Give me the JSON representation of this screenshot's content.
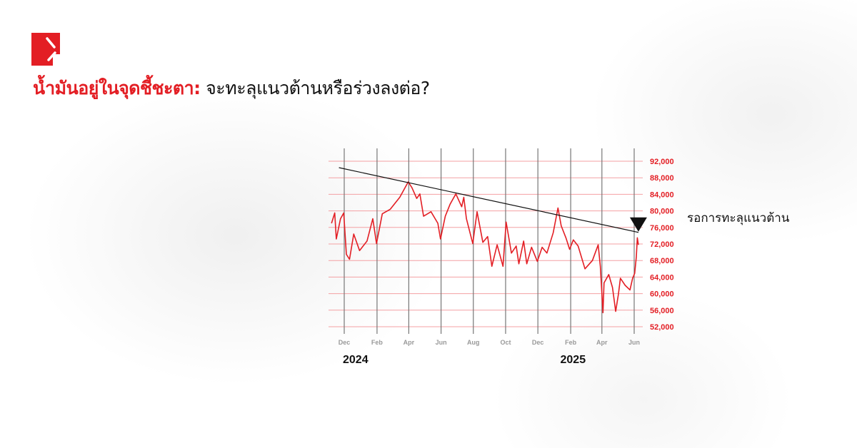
{
  "brand": {
    "logo": "red-corner-logo",
    "accent": "#e31e24"
  },
  "title": {
    "highlight": "น้ำมันอยู่ในจุดชี้ชะตา:",
    "rest": " จะทะลุแนวต้านหรือร่วงลงต่อ?"
  },
  "annotation": "รอการทะลุแนวต้าน",
  "chart_data": {
    "type": "line",
    "title": "",
    "xlabel": "",
    "ylabel": "",
    "ylim": [
      52000,
      92000
    ],
    "yticks": [
      "92,000",
      "88,000",
      "84,000",
      "80,000",
      "76,000",
      "72,000",
      "68,000",
      "64,000",
      "60,000",
      "56,000",
      "52,000"
    ],
    "ytick_values": [
      92000,
      88000,
      84000,
      80000,
      76000,
      72000,
      68000,
      64000,
      60000,
      56000,
      52000
    ],
    "xticks": [
      {
        "label": "Dec",
        "date": "2023-12-01"
      },
      {
        "label": "Feb",
        "date": "2024-02-01"
      },
      {
        "label": "Apr",
        "date": "2024-04-01"
      },
      {
        "label": "Jun",
        "date": "2024-06-01"
      },
      {
        "label": "Aug",
        "date": "2024-08-01"
      },
      {
        "label": "Oct",
        "date": "2024-10-01"
      },
      {
        "label": "Dec",
        "date": "2024-12-01"
      },
      {
        "label": "Feb",
        "date": "2025-02-01"
      },
      {
        "label": "Apr",
        "date": "2025-04-01"
      },
      {
        "label": "Jun",
        "date": "2025-06-01"
      }
    ],
    "year_labels": [
      {
        "label": "2024",
        "date": "2023-12-01"
      },
      {
        "label": "2025",
        "date": "2025-01-15"
      }
    ],
    "grid": true,
    "series_color": "#e31e24",
    "series": [
      {
        "x": [
          "2023-11-07",
          "2023-11-13",
          "2023-11-16",
          "2023-11-24",
          "2023-11-30",
          "2023-12-05",
          "2023-12-11",
          "2023-12-19",
          "2023-12-30",
          "2024-01-13",
          "2024-01-24",
          "2024-01-31",
          "2024-02-11",
          "2024-02-26",
          "2024-03-15",
          "2024-03-31",
          "2024-04-07",
          "2024-04-16",
          "2024-04-22",
          "2024-04-29",
          "2024-05-13",
          "2024-05-26",
          "2024-05-31",
          "2024-06-09",
          "2024-06-18",
          "2024-06-29",
          "2024-07-10",
          "2024-07-14",
          "2024-07-19",
          "2024-07-31",
          "2024-08-08",
          "2024-08-19",
          "2024-08-28",
          "2024-09-05",
          "2024-09-15",
          "2024-09-26",
          "2024-10-02",
          "2024-10-12",
          "2024-10-21",
          "2024-10-26",
          "2024-11-04",
          "2024-11-10",
          "2024-11-19",
          "2024-11-30",
          "2024-12-09",
          "2024-12-18",
          "2024-12-30",
          "2025-01-08",
          "2025-01-14",
          "2025-01-23",
          "2025-01-30",
          "2025-02-06",
          "2025-02-15",
          "2025-02-28",
          "2025-03-14",
          "2025-03-25",
          "2025-03-29",
          "2025-04-03",
          "2025-04-05",
          "2025-04-14",
          "2025-04-21",
          "2025-04-27",
          "2025-05-02",
          "2025-05-06",
          "2025-05-15",
          "2025-05-24",
          "2025-05-29",
          "2025-06-02",
          "2025-06-05",
          "2025-06-07",
          "2025-06-09"
        ],
        "y": [
          77000,
          79500,
          73200,
          78100,
          79500,
          69500,
          68300,
          74400,
          70400,
          72700,
          78100,
          72100,
          79300,
          80400,
          83300,
          87000,
          85600,
          83000,
          84100,
          78700,
          79800,
          77000,
          73200,
          78700,
          81600,
          84100,
          81000,
          83300,
          78100,
          72100,
          79800,
          72400,
          73800,
          66600,
          71800,
          66600,
          77300,
          69800,
          71500,
          67200,
          72700,
          67200,
          71200,
          67800,
          71200,
          69800,
          74700,
          80700,
          76400,
          73500,
          70700,
          73000,
          71500,
          66000,
          68000,
          71800,
          66600,
          55400,
          62600,
          64600,
          61500,
          55700,
          59700,
          63700,
          62000,
          60900,
          63700,
          64900,
          68900,
          73500,
          71800
        ]
      }
    ],
    "trendline": {
      "x": [
        "2023-11-21",
        "2025-06-09"
      ],
      "y": [
        90450,
        74800
      ],
      "color": "#111111"
    },
    "marker": {
      "shape": "down-triangle",
      "date": "2025-06-09",
      "color": "#111111"
    }
  }
}
